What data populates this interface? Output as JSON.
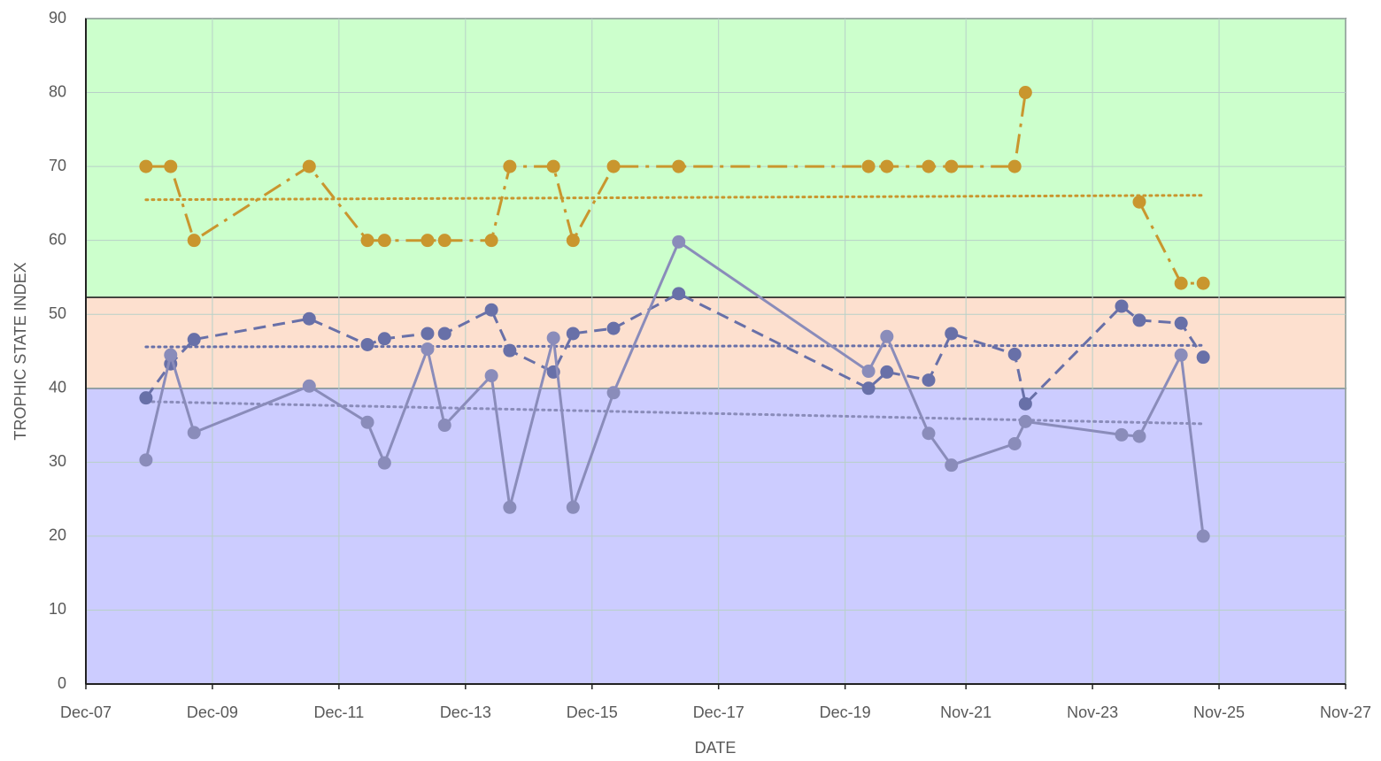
{
  "chart_data": {
    "type": "line",
    "x_label": "DATE",
    "y_label": "TROPHIC STATE INDEX",
    "xlim": [
      2007.92,
      2027.83
    ],
    "xticks": [
      {
        "value": 2007.92,
        "label": "Dec-07"
      },
      {
        "value": 2009.92,
        "label": "Dec-09"
      },
      {
        "value": 2011.92,
        "label": "Dec-11"
      },
      {
        "value": 2013.92,
        "label": "Dec-13"
      },
      {
        "value": 2015.92,
        "label": "Dec-15"
      },
      {
        "value": 2017.92,
        "label": "Dec-17"
      },
      {
        "value": 2019.92,
        "label": "Dec-19"
      },
      {
        "value": 2021.83,
        "label": "Nov-21"
      },
      {
        "value": 2023.83,
        "label": "Nov-23"
      },
      {
        "value": 2025.83,
        "label": "Nov-25"
      },
      {
        "value": 2027.83,
        "label": "Nov-27"
      }
    ],
    "ylim": [
      0,
      90
    ],
    "yticks": [
      0,
      10,
      20,
      30,
      40,
      50,
      60,
      70,
      80,
      90
    ],
    "grid": true,
    "bands": [
      {
        "from": 0,
        "to": 40,
        "color": "#ccccff"
      },
      {
        "from": 40,
        "to": 52.3,
        "color": "#fde0cf"
      },
      {
        "from": 52.3,
        "to": 90,
        "color": "#ccffcc"
      }
    ],
    "x": [
      2008.87,
      2009.26,
      2009.63,
      2011.45,
      2012.37,
      2012.64,
      2013.32,
      2013.59,
      2014.33,
      2014.62,
      2015.31,
      2015.62,
      2016.26,
      2017.29,
      2020.29,
      2020.58,
      2021.24,
      2021.6,
      2022.6,
      2022.77,
      2024.29,
      2024.57,
      2025.23,
      2025.58
    ],
    "series": [
      {
        "color": "#c9962e",
        "dash": "dashdot",
        "values": [
          70,
          70,
          60,
          70,
          60,
          60,
          60,
          60,
          60,
          70,
          70,
          60,
          70,
          70,
          70,
          70,
          70,
          70,
          70,
          80,
          null,
          65.2,
          54.2,
          54.2
        ],
        "trend": {
          "x": [
            2008.87,
            2025.58
          ],
          "values": [
            65.5,
            66.1
          ]
        }
      },
      {
        "color": "#6870a8",
        "dash": "dashed",
        "values": [
          38.7,
          43.3,
          46.6,
          49.4,
          45.9,
          46.7,
          47.4,
          47.4,
          50.6,
          45.1,
          42.2,
          47.4,
          48.1,
          52.8,
          40.0,
          42.2,
          41.1,
          47.4,
          44.6,
          37.9,
          51.1,
          49.2,
          48.8,
          44.2
        ],
        "trend": {
          "x": [
            2008.87,
            2025.58
          ],
          "values": [
            45.6,
            45.8
          ]
        }
      },
      {
        "color": "#8a8cba",
        "dash": "solid",
        "values": [
          30.3,
          44.5,
          34.0,
          40.3,
          35.4,
          29.9,
          45.3,
          35.0,
          41.7,
          23.9,
          46.8,
          23.9,
          39.4,
          59.8,
          42.3,
          47.0,
          33.9,
          29.6,
          32.5,
          35.5,
          33.7,
          33.5,
          44.5,
          20.0
        ],
        "trend": {
          "x": [
            2008.87,
            2025.58
          ],
          "values": [
            38.2,
            35.2
          ]
        }
      }
    ]
  }
}
